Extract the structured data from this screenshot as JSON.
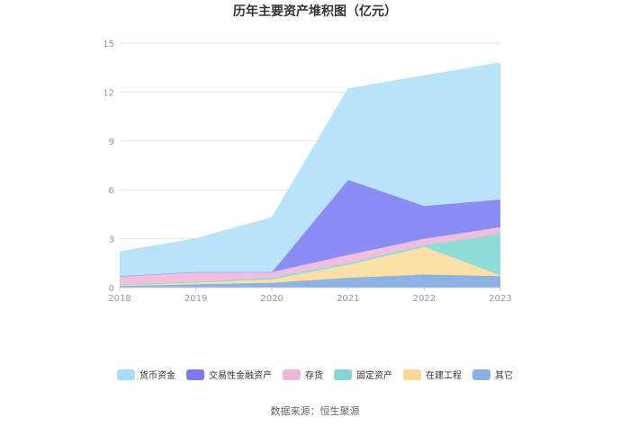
{
  "chart_data": {
    "type": "area",
    "stacked": true,
    "title": "历年主要资产堆积图（亿元）",
    "x": [
      "2018",
      "2019",
      "2020",
      "2021",
      "2022",
      "2023"
    ],
    "ylim": [
      0,
      15
    ],
    "yticks": [
      "0",
      "3",
      "6",
      "9",
      "12",
      "15"
    ],
    "grid": true,
    "legend_position": "bottom",
    "series": [
      {
        "name": "其它",
        "color": "#8eb2e3",
        "values": [
          0.1,
          0.2,
          0.3,
          0.6,
          0.8,
          0.7
        ]
      },
      {
        "name": "在建工程",
        "color": "#fde0a8",
        "values": [
          0.05,
          0.1,
          0.2,
          0.8,
          1.7,
          0.05
        ]
      },
      {
        "name": "固定资产",
        "color": "#8fdcd8",
        "values": [
          0.05,
          0.05,
          0.1,
          0.1,
          0.1,
          2.55
        ]
      },
      {
        "name": "存货",
        "color": "#f0bfde",
        "values": [
          0.5,
          0.6,
          0.35,
          0.5,
          0.4,
          0.4
        ]
      },
      {
        "name": "交易性金融资产",
        "color": "#8c8cf5",
        "values": [
          0.0,
          0.0,
          0.0,
          4.6,
          2.0,
          1.7
        ]
      },
      {
        "name": "货币资金",
        "color": "#b8e3fb",
        "values": [
          1.5,
          2.05,
          3.35,
          5.6,
          8.0,
          8.4
        ]
      }
    ],
    "legend_order": [
      "货币资金",
      "交易性金融资产",
      "存货",
      "固定资产",
      "在建工程",
      "其它"
    ],
    "legend_swatch_colors": [
      "#a8dcf8",
      "#7b7bee",
      "#eab8dc",
      "#86d5d4",
      "#fdd89a",
      "#8eb0e0"
    ]
  },
  "source": "数据来源：恒生聚源"
}
